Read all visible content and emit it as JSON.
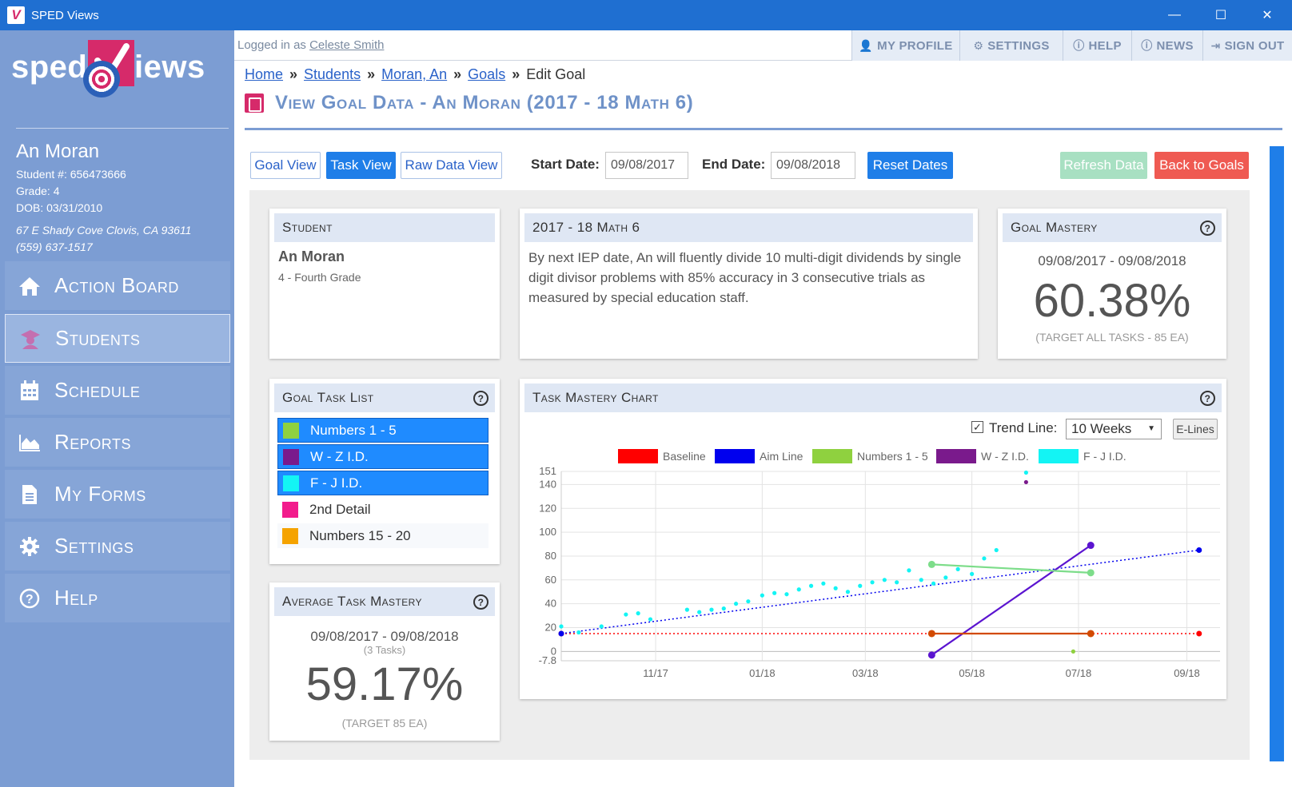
{
  "window": {
    "title": "SPED Views",
    "app_icon_letter": "V",
    "minimize": "—",
    "maximize": "☐",
    "close": "✕"
  },
  "logo": {
    "left": "sped",
    "right": "iews"
  },
  "student": {
    "name": "An Moran",
    "number": "Student #: 656473666",
    "grade": "Grade: 4",
    "dob": "DOB: 03/31/2010",
    "address": "67 E Shady Cove Clovis, CA 93611",
    "phone": "(559) 637-1517"
  },
  "nav": [
    {
      "label": "Action Board",
      "icon": "home-icon"
    },
    {
      "label": "Students",
      "icon": "student-icon",
      "active": true
    },
    {
      "label": "Schedule",
      "icon": "calendar-icon"
    },
    {
      "label": "Reports",
      "icon": "area-chart-icon"
    },
    {
      "label": "My Forms",
      "icon": "document-icon"
    },
    {
      "label": "Settings",
      "icon": "gear-icon"
    },
    {
      "label": "Help",
      "icon": "question-icon"
    }
  ],
  "topbar": {
    "logged_prefix": "Logged in as ",
    "user": "Celeste Smith",
    "buttons": [
      "MY PROFILE",
      "SETTINGS",
      "HELP",
      "NEWS",
      "SIGN OUT"
    ]
  },
  "breadcrumb": {
    "home": "Home",
    "students": "Students",
    "student": "Moran, An",
    "goals": "Goals",
    "current": "Edit Goal",
    "sep": "»"
  },
  "page_title": "View Goal Data - An Moran (2017 - 18 Math 6)",
  "toolbar": {
    "goal_view": "Goal View",
    "task_view": "Task View",
    "raw_view": "Raw Data View",
    "start_label": "Start Date:",
    "start_value": "09/08/2017",
    "end_label": "End Date:",
    "end_value": "09/08/2018",
    "reset": "Reset Dates",
    "refresh": "Refresh Data",
    "back": "Back to Goals"
  },
  "student_card": {
    "header": "Student",
    "name": "An Moran",
    "grade": "4 - Fourth Grade"
  },
  "goal_card": {
    "header": "2017 - 18 Math 6",
    "text": "By next IEP date, An will fluently divide 10 multi-digit dividends by single digit divisor problems with 85% accuracy in 3 consecutive trials as measured by special education staff."
  },
  "mastery_card": {
    "header": "Goal Mastery",
    "range": "09/08/2017 - 09/08/2018",
    "value": "60.38%",
    "target": "(TARGET ALL TASKS - 85 EA)"
  },
  "task_list": {
    "header": "Goal Task List",
    "items": [
      {
        "label": "Numbers 1 - 5",
        "color": "#8fd13f",
        "selected": true
      },
      {
        "label": "W - Z I.D.",
        "color": "#7a1a8c",
        "selected": true
      },
      {
        "label": "F - J I.D.",
        "color": "#13f4f4",
        "selected": true
      },
      {
        "label": "2nd Detail",
        "color": "#f21c8c",
        "selected": false
      },
      {
        "label": "Numbers 15 - 20",
        "color": "#f5a300",
        "selected": false
      }
    ]
  },
  "avg_card": {
    "header": "Average Task Mastery",
    "range": "09/08/2017 - 09/08/2018",
    "tasks": "(3 Tasks)",
    "value": "59.17%",
    "target": "(TARGET 85 EA)"
  },
  "chart_card": {
    "header": "Task Mastery Chart",
    "trend_label": "Trend Line:",
    "trend_checked": "✓",
    "trend_value": "10 Weeks",
    "elines": "E-Lines"
  },
  "chart_data": {
    "type": "scatter",
    "title": "",
    "x_ticks": [
      "11/17",
      "01/18",
      "03/18",
      "05/18",
      "07/18",
      "09/18"
    ],
    "y_ticks": [
      "-7.8",
      "0",
      "20",
      "40",
      "60",
      "80",
      "100",
      "120",
      "140",
      "151"
    ],
    "ylim": [
      -7.8,
      151
    ],
    "xlim": [
      "09/08/2017",
      "09/20/2018"
    ],
    "legend": [
      {
        "name": "Baseline",
        "color": "#ff0000"
      },
      {
        "name": "Aim Line",
        "color": "#0000ee"
      },
      {
        "name": "Numbers 1 - 5",
        "color": "#8fd13f"
      },
      {
        "name": "W - Z I.D.",
        "color": "#7a1a8c"
      },
      {
        "name": "F - J I.D.",
        "color": "#13f4f4"
      }
    ],
    "baseline": {
      "color": "#ff0000",
      "points": [
        [
          "09/08/2017",
          15
        ],
        [
          "09/08/2018",
          15
        ]
      ]
    },
    "aim_line": {
      "color": "#0000ee",
      "points": [
        [
          "09/08/2017",
          15
        ],
        [
          "09/08/2018",
          85
        ]
      ]
    },
    "segments": [
      {
        "name": "W - Z I.D. trend",
        "color": "#5b14d0",
        "from": [
          "04/08/2018",
          -3
        ],
        "to": [
          "07/08/2018",
          89
        ]
      },
      {
        "name": "Numbers 1 - 5 trend",
        "color": "#7ddd8a",
        "from": [
          "04/08/2018",
          73
        ],
        "to": [
          "07/08/2018",
          66
        ]
      },
      {
        "name": "baseline segment",
        "color": "#d24a00",
        "from": [
          "04/08/2018",
          15
        ],
        "to": [
          "07/08/2018",
          15
        ]
      }
    ],
    "series": [
      {
        "name": "F - J I.D.",
        "color": "#13f4f4",
        "points": [
          [
            "09/08/2017",
            21
          ],
          [
            "09/18/2017",
            16
          ],
          [
            "10/01/2017",
            21
          ],
          [
            "10/15/2017",
            31
          ],
          [
            "10/22/2017",
            32
          ],
          [
            "10/29/2017",
            27
          ],
          [
            "11/19/2017",
            35
          ],
          [
            "11/26/2017",
            33
          ],
          [
            "12/03/2017",
            35
          ],
          [
            "12/10/2017",
            36
          ],
          [
            "12/17/2017",
            40
          ],
          [
            "12/24/2017",
            42
          ],
          [
            "01/01/2018",
            47
          ],
          [
            "01/08/2018",
            49
          ],
          [
            "01/15/2018",
            48
          ],
          [
            "01/22/2018",
            52
          ],
          [
            "01/29/2018",
            55
          ],
          [
            "02/05/2018",
            57
          ],
          [
            "02/12/2018",
            53
          ],
          [
            "02/19/2018",
            50
          ],
          [
            "02/26/2018",
            55
          ],
          [
            "03/05/2018",
            58
          ],
          [
            "03/12/2018",
            60
          ],
          [
            "03/19/2018",
            58
          ],
          [
            "03/26/2018",
            68
          ],
          [
            "04/02/2018",
            60
          ],
          [
            "04/09/2018",
            57
          ],
          [
            "04/16/2018",
            62
          ],
          [
            "04/23/2018",
            69
          ],
          [
            "05/01/2018",
            65
          ],
          [
            "05/08/2018",
            78
          ],
          [
            "05/15/2018",
            85
          ],
          [
            "06/01/2018",
            150
          ]
        ]
      },
      {
        "name": "W - Z I.D.",
        "color": "#7a1a8c",
        "points": [
          [
            "06/01/2018",
            142
          ]
        ]
      },
      {
        "name": "Numbers 1 - 5",
        "color": "#8fd13f",
        "points": [
          [
            "06/28/2018",
            0
          ]
        ]
      }
    ]
  }
}
